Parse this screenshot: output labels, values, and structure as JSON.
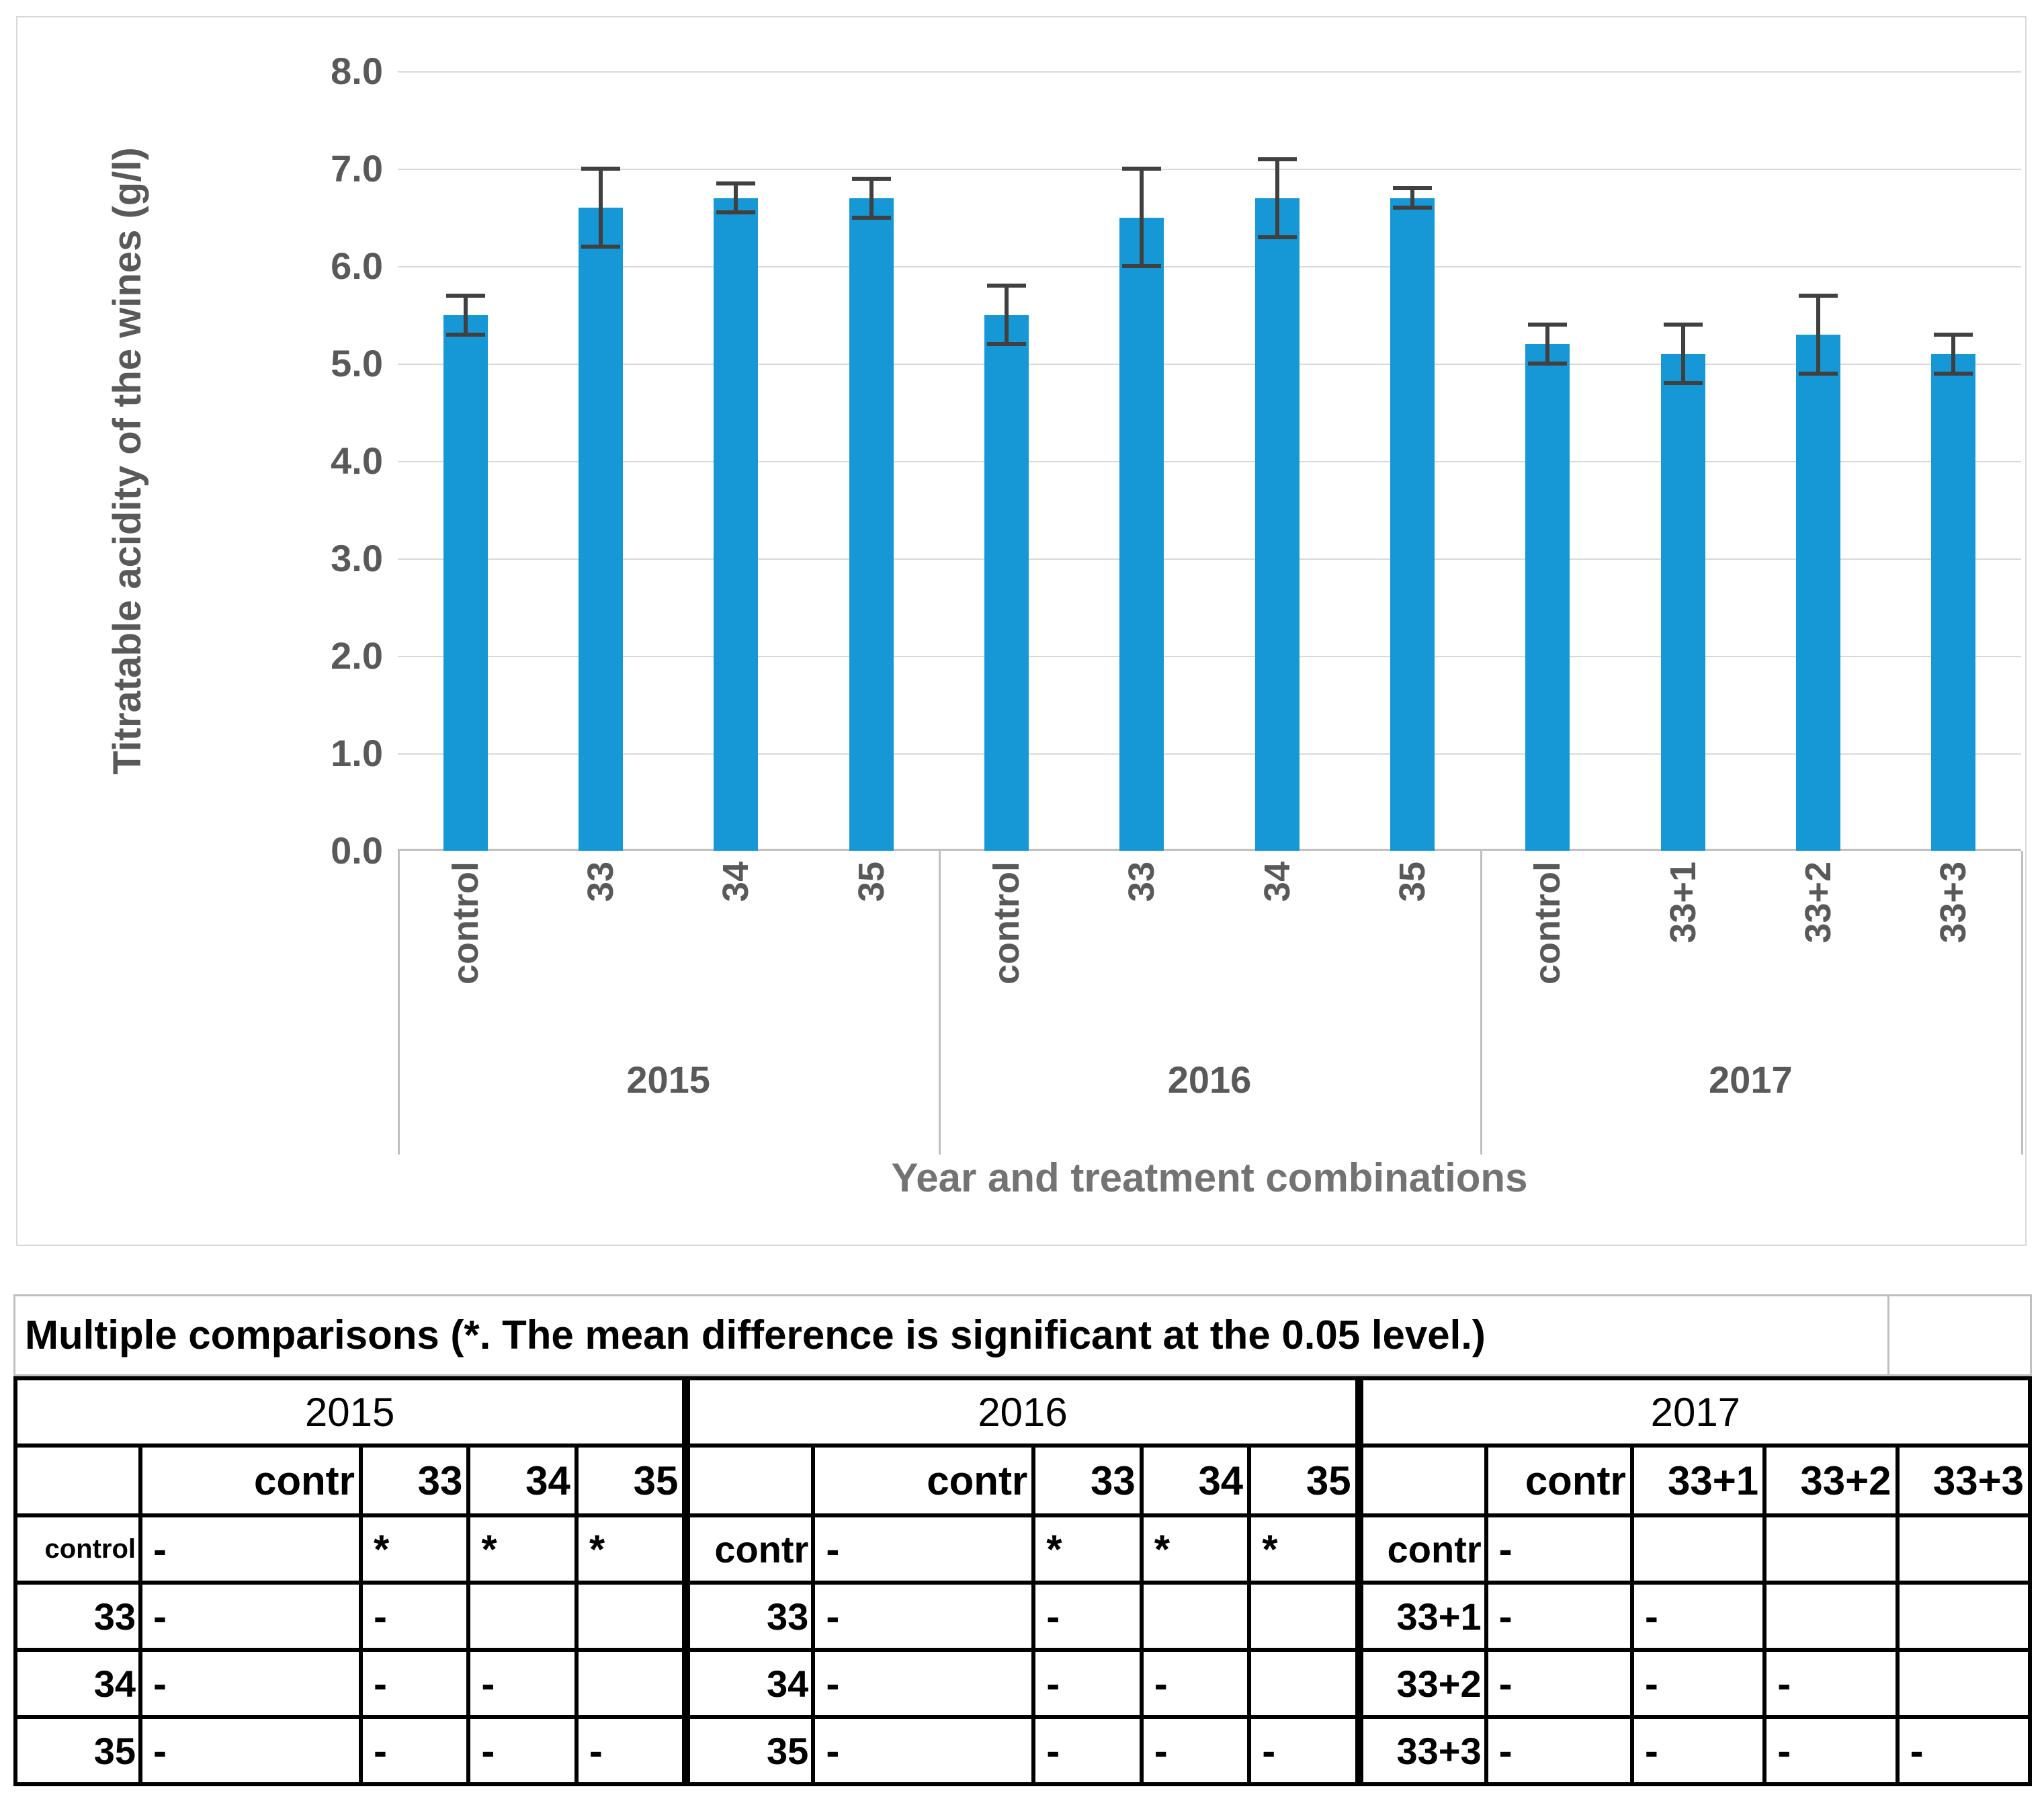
{
  "chart_data": {
    "type": "bar",
    "title": "",
    "ylabel": "Titratable acidity of the wines (g/l)",
    "xlabel": "Year and treatment combinations",
    "ylim": [
      0,
      8
    ],
    "ytick_labels": [
      "8.0",
      "7.0",
      "6.0",
      "5.0",
      "4.0",
      "3.0",
      "2.0",
      "1.0",
      "0.0"
    ],
    "grid": "on",
    "legend": "none",
    "bar_color": "#1598d5",
    "error_color": "#404040",
    "gridline_color": "#d9d9d9",
    "axis_text_color": "#595959",
    "groups": [
      {
        "year": "2015",
        "categories": [
          "control",
          "33",
          "34",
          "35"
        ],
        "values": [
          5.5,
          6.6,
          6.7,
          6.7
        ],
        "errors": [
          0.2,
          0.4,
          0.15,
          0.2
        ]
      },
      {
        "year": "2016",
        "categories": [
          "control",
          "33",
          "34",
          "35"
        ],
        "values": [
          5.5,
          6.5,
          6.7,
          6.7
        ],
        "errors": [
          0.3,
          0.5,
          0.4,
          0.1
        ]
      },
      {
        "year": "2017",
        "categories": [
          "control",
          "33+1",
          "33+2",
          "33+3"
        ],
        "values": [
          5.2,
          5.1,
          5.3,
          5.1
        ],
        "errors": [
          0.2,
          0.3,
          0.4,
          0.2
        ]
      }
    ]
  },
  "comparison_table": {
    "title": "Multiple comparisons (*. The mean difference is significant at the 0.05 level.)",
    "blocks": [
      {
        "year": "2015",
        "col_headers": [
          "",
          "contr",
          "33",
          "34",
          "35"
        ],
        "rows": [
          {
            "label": "control",
            "small": true,
            "cells": [
              "-",
              "*",
              "*",
              "*"
            ]
          },
          {
            "label": "33",
            "small": false,
            "cells": [
              "-",
              "-",
              "",
              ""
            ]
          },
          {
            "label": "34",
            "small": false,
            "cells": [
              "-",
              "-",
              "-",
              ""
            ]
          },
          {
            "label": "35",
            "small": false,
            "cells": [
              "-",
              "-",
              "-",
              "-"
            ]
          }
        ]
      },
      {
        "year": "2016",
        "col_headers": [
          "",
          "contr",
          "33",
          "34",
          "35"
        ],
        "rows": [
          {
            "label": "contr",
            "small": false,
            "cells": [
              "-",
              "*",
              "*",
              "*"
            ]
          },
          {
            "label": "33",
            "small": false,
            "cells": [
              "-",
              "-",
              "",
              ""
            ]
          },
          {
            "label": "34",
            "small": false,
            "cells": [
              "-",
              "-",
              "-",
              ""
            ]
          },
          {
            "label": "35",
            "small": false,
            "cells": [
              "-",
              "-",
              "-",
              "-"
            ]
          }
        ]
      },
      {
        "year": "2017",
        "col_headers": [
          "",
          "contr",
          "33+1",
          "33+2",
          "33+3"
        ],
        "rows": [
          {
            "label": "contr",
            "small": false,
            "cells": [
              "-",
              "",
              "",
              ""
            ]
          },
          {
            "label": "33+1",
            "small": false,
            "cells": [
              "-",
              "-",
              "",
              ""
            ]
          },
          {
            "label": "33+2",
            "small": false,
            "cells": [
              "-",
              "-",
              "-",
              ""
            ]
          },
          {
            "label": "33+3",
            "small": false,
            "cells": [
              "-",
              "-",
              "-",
              "-"
            ]
          }
        ]
      }
    ]
  }
}
